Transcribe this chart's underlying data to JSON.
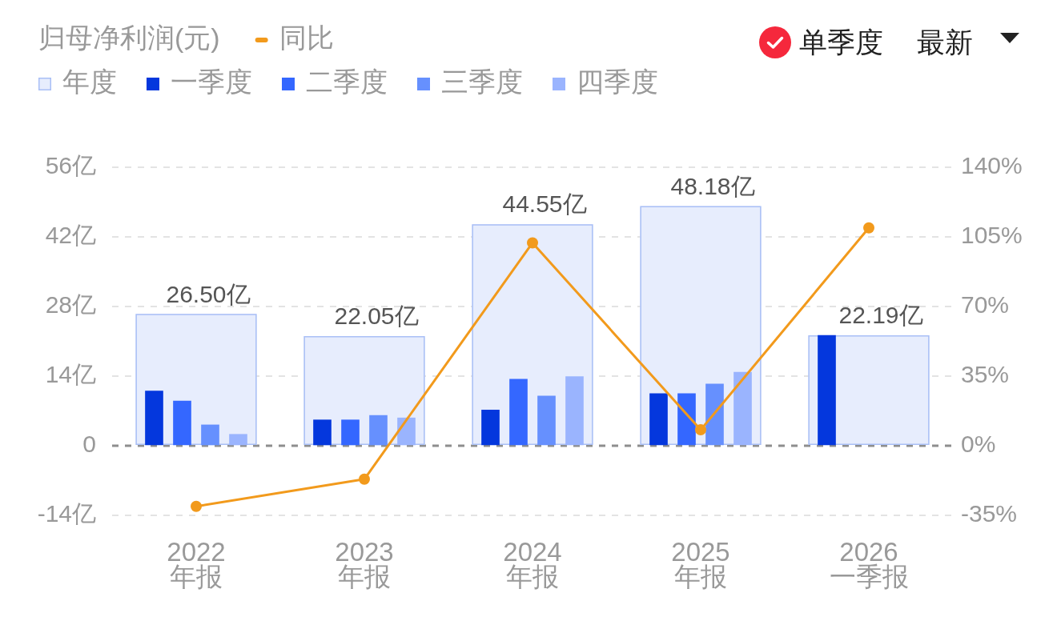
{
  "chart_data": {
    "type": "bar",
    "title": "归母净利润(元)",
    "categories": [
      "2022\n年报",
      "2023\n年报",
      "2024\n年报",
      "2025\n年报",
      "2026\n一季报"
    ],
    "series": [
      {
        "name": "年度",
        "type": "bar",
        "color": "#e7edfd",
        "values": [
          26.5,
          22.05,
          44.55,
          48.18,
          22.19
        ],
        "value_labels": [
          "26.50亿",
          "22.05亿",
          "44.55亿",
          "48.18亿",
          "22.19亿"
        ]
      },
      {
        "name": "一季度",
        "type": "bar",
        "color": "#0437dd",
        "values": [
          11.0,
          5.2,
          7.2,
          10.5,
          22.2
        ]
      },
      {
        "name": "二季度",
        "type": "bar",
        "color": "#3467ff",
        "values": [
          9.0,
          5.2,
          13.4,
          10.5,
          null
        ]
      },
      {
        "name": "三季度",
        "type": "bar",
        "color": "#6690fe",
        "values": [
          4.2,
          6.1,
          10.0,
          12.4,
          null
        ]
      },
      {
        "name": "四季度",
        "type": "bar",
        "color": "#9ab4fe",
        "values": [
          2.3,
          5.6,
          13.9,
          14.8,
          null
        ]
      },
      {
        "name": "同比",
        "type": "line",
        "axis": "y2",
        "color": "#f29a1c",
        "values": [
          -30.5,
          -16.8,
          102,
          8,
          109.5
        ]
      }
    ],
    "ylim": [
      -14,
      56
    ],
    "yticks": [
      {
        "value": -14,
        "label": "-14亿"
      },
      0,
      {
        "value": 14,
        "label": "14亿"
      },
      {
        "value": 28,
        "label": "28亿"
      },
      {
        "value": 42,
        "label": "42亿"
      },
      {
        "value": 56,
        "label": "56亿"
      }
    ],
    "y2lim": [
      -35,
      140
    ],
    "y2ticks": [
      {
        "value": -35,
        "label": "-35%"
      },
      {
        "value": 0,
        "label": "0%"
      },
      {
        "value": 35,
        "label": "35%"
      },
      {
        "value": 70,
        "label": "70%"
      },
      {
        "value": 105,
        "label": "105%"
      },
      {
        "value": 140,
        "label": "140%"
      }
    ],
    "ref_lines": [
      {
        "axis": "y",
        "value": 0,
        "color": "#8e8e8e",
        "line_style": "dashed"
      }
    ],
    "grid": "y",
    "legend": "top left",
    "marker": "circle",
    "annotations": [
      "单季度",
      "最新"
    ]
  }
}
